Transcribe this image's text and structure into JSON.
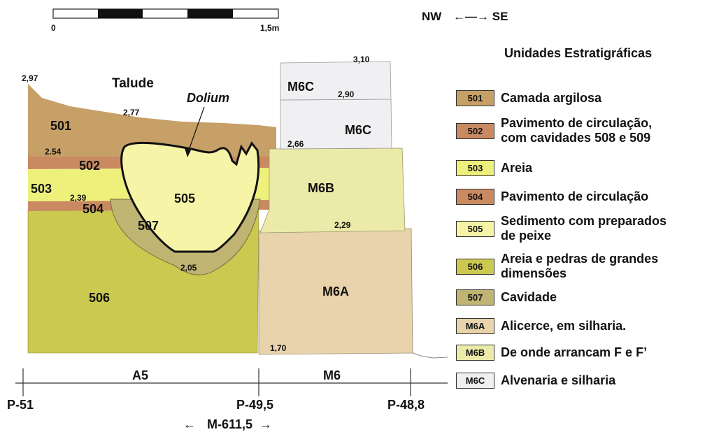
{
  "scale": {
    "start": "0",
    "end": "1,5m"
  },
  "orientation": {
    "left": "NW",
    "right": "SE",
    "arrow": "←—→"
  },
  "section": {
    "talude": "Talude",
    "dolium": "Dolium",
    "units": {
      "u501": "501",
      "u502": "502",
      "u503": "503",
      "u504": "504",
      "u505": "505",
      "u506": "506",
      "u507": "507",
      "m6a": "M6A",
      "m6b": "M6B",
      "m6c_top": "M6C",
      "m6c_mid": "M6C"
    },
    "elevations": {
      "e297": "2,97",
      "e277": "2,77",
      "e254": "2.54",
      "e239": "2,39",
      "e205": "2,05",
      "e310": "3,10",
      "e290": "2,90",
      "e266": "2,66",
      "e229": "2,29",
      "e170": "1,70"
    }
  },
  "axis": {
    "zone_a5": "A5",
    "zone_m6": "M6",
    "p51": "P-51",
    "p495": "P-49,5",
    "p488": "P-48,8",
    "m6115": "M-611,5",
    "arrow_left": "←",
    "arrow_right": "→"
  },
  "legend": {
    "title": "Unidades Estratigráficas",
    "items": [
      {
        "code": "501",
        "text": [
          "Camada argilosa"
        ],
        "color": "#c6a066"
      },
      {
        "code": "502",
        "text": [
          "Pavimento de circulação,",
          "com cavidades 508 e 509"
        ],
        "color": "#c98a62"
      },
      {
        "code": "503",
        "text": [
          "Areia"
        ],
        "color": "#eef07c"
      },
      {
        "code": "504",
        "text": [
          "Pavimento de circulação"
        ],
        "color": "#c98a62"
      },
      {
        "code": "505",
        "text": [
          "Sedimento com preparados",
          "de peixe"
        ],
        "color": "#f6f4a6"
      },
      {
        "code": "506",
        "text": [
          "Areia e pedras de grandes",
          "dimensões"
        ],
        "color": "#ccc950"
      },
      {
        "code": "507",
        "text": [
          "Cavidade"
        ],
        "color": "#bfb472"
      },
      {
        "code": "M6A",
        "text": [
          "Alicerce, em silharia."
        ],
        "color": "#e9d3ac"
      },
      {
        "code": "M6B",
        "text": [
          "De onde arrancam F e F’"
        ],
        "color": "#eceaa8"
      },
      {
        "code": "M6C",
        "text": [
          "Alvenaria e silharia"
        ],
        "color": "#f0f0f3"
      }
    ]
  }
}
